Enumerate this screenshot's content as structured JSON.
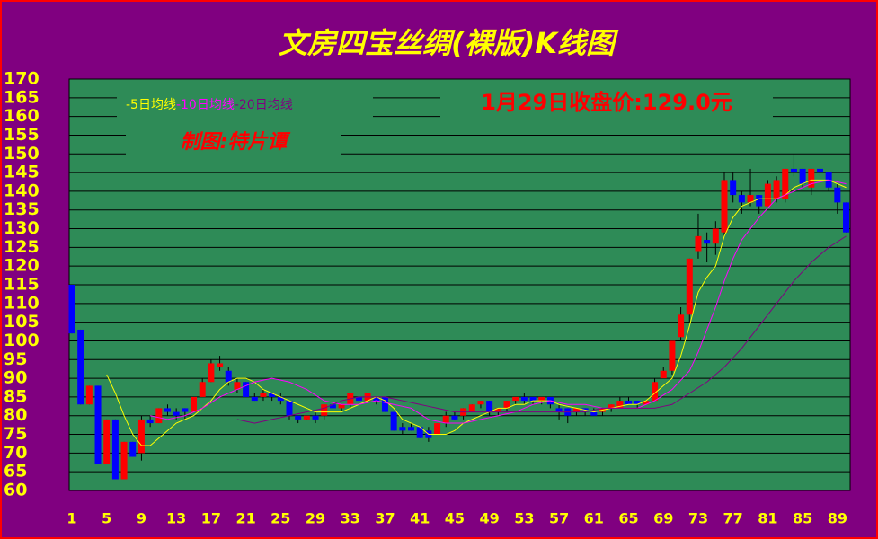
{
  "chart_data": {
    "type": "candlestick",
    "title": "文房四宝丝绸(裸版)K线图",
    "subtitle": "1月29日收盘价:129.0元",
    "credit": "制图:特片谭",
    "categories": [
      "1",
      null,
      null,
      null,
      "5",
      null,
      null,
      null,
      "9",
      null,
      null,
      null,
      "13",
      null,
      null,
      null,
      "17",
      null,
      null,
      null,
      "21",
      null,
      null,
      null,
      "25",
      null,
      null,
      null,
      "29",
      null,
      null,
      null,
      "33",
      null,
      null,
      null,
      "37",
      null,
      null,
      null,
      "41",
      null,
      null,
      null,
      "45",
      null,
      null,
      null,
      "49",
      null,
      null,
      null,
      "53",
      null,
      null,
      null,
      "57",
      null,
      null,
      null,
      "61",
      null,
      null,
      null,
      "65",
      null,
      null,
      null,
      "69",
      null,
      null,
      null,
      "73",
      null,
      null,
      null,
      "77",
      null,
      null,
      null,
      "81",
      null,
      null,
      null,
      "85",
      null,
      null,
      null,
      "89",
      null
    ],
    "open": [
      115,
      103,
      83,
      88,
      67,
      79,
      63,
      73,
      70,
      79,
      78,
      82,
      81,
      82,
      81,
      85,
      89,
      93,
      92,
      87,
      89,
      85,
      85,
      86,
      85,
      84,
      80,
      79,
      80,
      80,
      83,
      82,
      83,
      85,
      84,
      85,
      85,
      81,
      77,
      77,
      77,
      76,
      75,
      78,
      80,
      80,
      81,
      83,
      84,
      81,
      82,
      84,
      85,
      85,
      84,
      85,
      82,
      82,
      81,
      82,
      81,
      81,
      82,
      82,
      84,
      84,
      83,
      84,
      90,
      92,
      101,
      107,
      124,
      127,
      126,
      129,
      143,
      139,
      137,
      139,
      136,
      138,
      138,
      146,
      146,
      141,
      146,
      145,
      141,
      137
    ],
    "high": [
      115,
      103,
      88,
      88,
      79,
      79,
      73,
      73,
      80,
      80,
      82,
      83,
      82,
      82,
      85,
      90,
      95,
      96,
      93,
      90,
      89,
      86,
      87,
      86,
      86,
      84,
      80,
      80,
      81,
      83,
      83,
      83,
      86,
      85,
      86,
      85,
      85,
      81,
      78,
      78,
      77,
      77,
      78,
      81,
      81,
      82,
      83,
      84,
      84,
      82,
      84,
      85,
      86,
      85,
      85,
      85,
      83,
      82,
      82,
      82,
      82,
      82,
      83,
      85,
      85,
      84,
      84,
      90,
      93,
      100,
      109,
      122,
      134,
      129,
      132,
      145,
      145,
      140,
      146,
      139,
      143,
      144,
      146,
      150,
      146,
      146,
      146,
      145,
      142,
      137
    ],
    "low": [
      102,
      83,
      83,
      67,
      67,
      63,
      63,
      69,
      68,
      77,
      78,
      80,
      79,
      79,
      81,
      85,
      89,
      92,
      88,
      86,
      85,
      84,
      84,
      84,
      83,
      79,
      78,
      79,
      78,
      79,
      82,
      81,
      82,
      84,
      84,
      83,
      81,
      76,
      75,
      76,
      74,
      73,
      75,
      77,
      79,
      79,
      81,
      82,
      80,
      80,
      81,
      83,
      83,
      83,
      83,
      82,
      79,
      78,
      80,
      80,
      80,
      80,
      81,
      82,
      83,
      82,
      83,
      84,
      90,
      91,
      100,
      105,
      122,
      121,
      123,
      128,
      137,
      134,
      136,
      134,
      136,
      137,
      137,
      144,
      141,
      139,
      144,
      140,
      134,
      129
    ],
    "close": [
      102,
      83,
      88,
      67,
      79,
      63,
      73,
      69,
      79,
      78,
      82,
      81,
      80,
      81,
      85,
      89,
      94,
      94,
      89,
      89,
      85,
      84,
      86,
      85,
      84,
      80,
      79,
      80,
      79,
      83,
      82,
      83,
      86,
      84,
      86,
      84,
      81,
      76,
      76,
      76,
      74,
      74,
      78,
      80,
      79,
      82,
      83,
      84,
      81,
      82,
      84,
      85,
      84,
      84,
      85,
      83,
      81,
      80,
      82,
      81,
      80,
      82,
      83,
      84,
      83,
      83,
      84,
      89,
      92,
      100,
      107,
      122,
      128,
      126,
      130,
      143,
      139,
      137,
      139,
      136,
      142,
      143,
      146,
      145,
      142,
      146,
      145,
      141,
      137,
      129
    ],
    "up_color": "#ff0000",
    "down_color": "#0000ff",
    "series": [
      {
        "name": "-5日均线",
        "color": "#ffff00",
        "values": [
          null,
          null,
          null,
          null,
          91,
          86,
          80,
          75,
          72,
          72,
          74,
          76,
          78,
          79,
          80,
          82,
          84,
          87,
          89,
          90,
          90,
          89,
          87,
          86,
          85,
          84,
          83,
          82,
          81,
          81,
          81,
          81,
          82,
          83,
          84,
          85,
          84,
          82,
          79,
          78,
          77,
          75,
          75,
          75,
          76,
          78,
          79,
          80,
          81,
          82,
          82,
          83,
          83,
          84,
          84,
          84,
          83,
          82.5,
          82,
          81.5,
          81,
          81.5,
          82,
          82.5,
          83,
          83,
          84,
          86,
          88,
          90,
          96,
          104,
          113,
          117,
          120,
          128,
          133,
          136,
          137,
          138,
          138,
          138,
          139,
          141,
          142,
          143,
          143,
          143,
          142,
          141
        ]
      },
      {
        "name": "-10日均线",
        "color": "#ff00ff",
        "values": [
          null,
          null,
          null,
          null,
          null,
          null,
          null,
          null,
          null,
          80,
          79.5,
          79,
          79.5,
          80,
          81,
          82,
          83.5,
          85,
          86,
          87,
          88,
          89,
          89.5,
          90,
          89.5,
          89,
          88,
          87,
          85.5,
          84,
          83.5,
          83,
          83,
          83,
          83.5,
          84,
          83.5,
          83,
          82.5,
          82,
          80.5,
          79,
          78.5,
          78,
          78,
          78,
          78.5,
          79,
          79.5,
          80,
          80.5,
          81,
          82,
          83,
          83.5,
          84,
          83.5,
          83,
          83,
          83,
          82.5,
          82,
          82,
          82,
          82,
          82,
          83,
          84,
          85.5,
          87,
          89.5,
          92,
          97,
          103,
          109,
          116,
          122,
          127,
          130,
          133,
          135.5,
          138,
          139,
          140,
          141,
          142,
          142.5,
          143,
          142.5,
          142
        ]
      },
      {
        "name": "-20日均线",
        "color": "#800080",
        "values": [
          null,
          null,
          null,
          null,
          null,
          null,
          null,
          null,
          null,
          null,
          null,
          null,
          null,
          null,
          null,
          null,
          null,
          null,
          null,
          79,
          78.5,
          78,
          78.5,
          79,
          79.5,
          80,
          80.5,
          81,
          81.5,
          82,
          83,
          84,
          84.5,
          85,
          85,
          85,
          85,
          84.5,
          84,
          83.5,
          83,
          82.5,
          82,
          81.5,
          81,
          81,
          81,
          81,
          81,
          81,
          81,
          81,
          81,
          81,
          81,
          81,
          81,
          81,
          81,
          81,
          81.5,
          82,
          82,
          82,
          82,
          82,
          82,
          82,
          82.5,
          83,
          84.5,
          86,
          87.5,
          89,
          91,
          93,
          95.5,
          98,
          101,
          104,
          107,
          110,
          113,
          116,
          118.5,
          121,
          123,
          125,
          126.5,
          128
        ]
      }
    ],
    "ylim": [
      60,
      170
    ],
    "yticks": [
      60,
      65,
      70,
      75,
      80,
      85,
      90,
      95,
      100,
      105,
      110,
      115,
      120,
      125,
      130,
      135,
      140,
      145,
      150,
      155,
      160,
      165,
      170
    ],
    "grid": true
  }
}
